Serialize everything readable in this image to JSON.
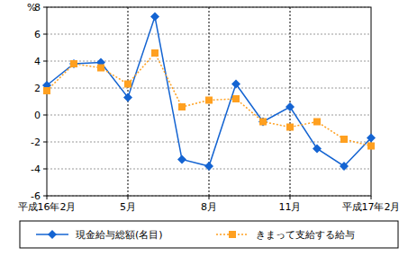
{
  "chart_data": {
    "type": "line",
    "y_label": "%",
    "categories": [
      "平成16年2月",
      null,
      null,
      "5月",
      null,
      null,
      "8月",
      null,
      null,
      "11月",
      null,
      null,
      "平成17年2月"
    ],
    "series": [
      {
        "name": "現金給与総額(名目)",
        "color": "#1464d2",
        "marker": "diamond",
        "line_style": "solid",
        "values": [
          2.2,
          3.8,
          3.9,
          1.3,
          7.3,
          -3.3,
          -3.8,
          2.3,
          -0.5,
          0.6,
          -2.5,
          -3.8,
          -1.7
        ]
      },
      {
        "name": "きまって支給する給与",
        "color": "#ffa020",
        "marker": "square",
        "line_style": "dotted",
        "values": [
          1.8,
          3.8,
          3.5,
          2.3,
          4.6,
          0.6,
          1.1,
          1.2,
          -0.5,
          -0.9,
          -0.5,
          -1.8,
          -2.3
        ]
      }
    ],
    "ylim": [
      -6,
      8
    ],
    "yticks": [
      -6,
      -4,
      -2,
      0,
      2,
      4,
      6,
      8
    ],
    "grid": true,
    "legend": "bottom"
  }
}
